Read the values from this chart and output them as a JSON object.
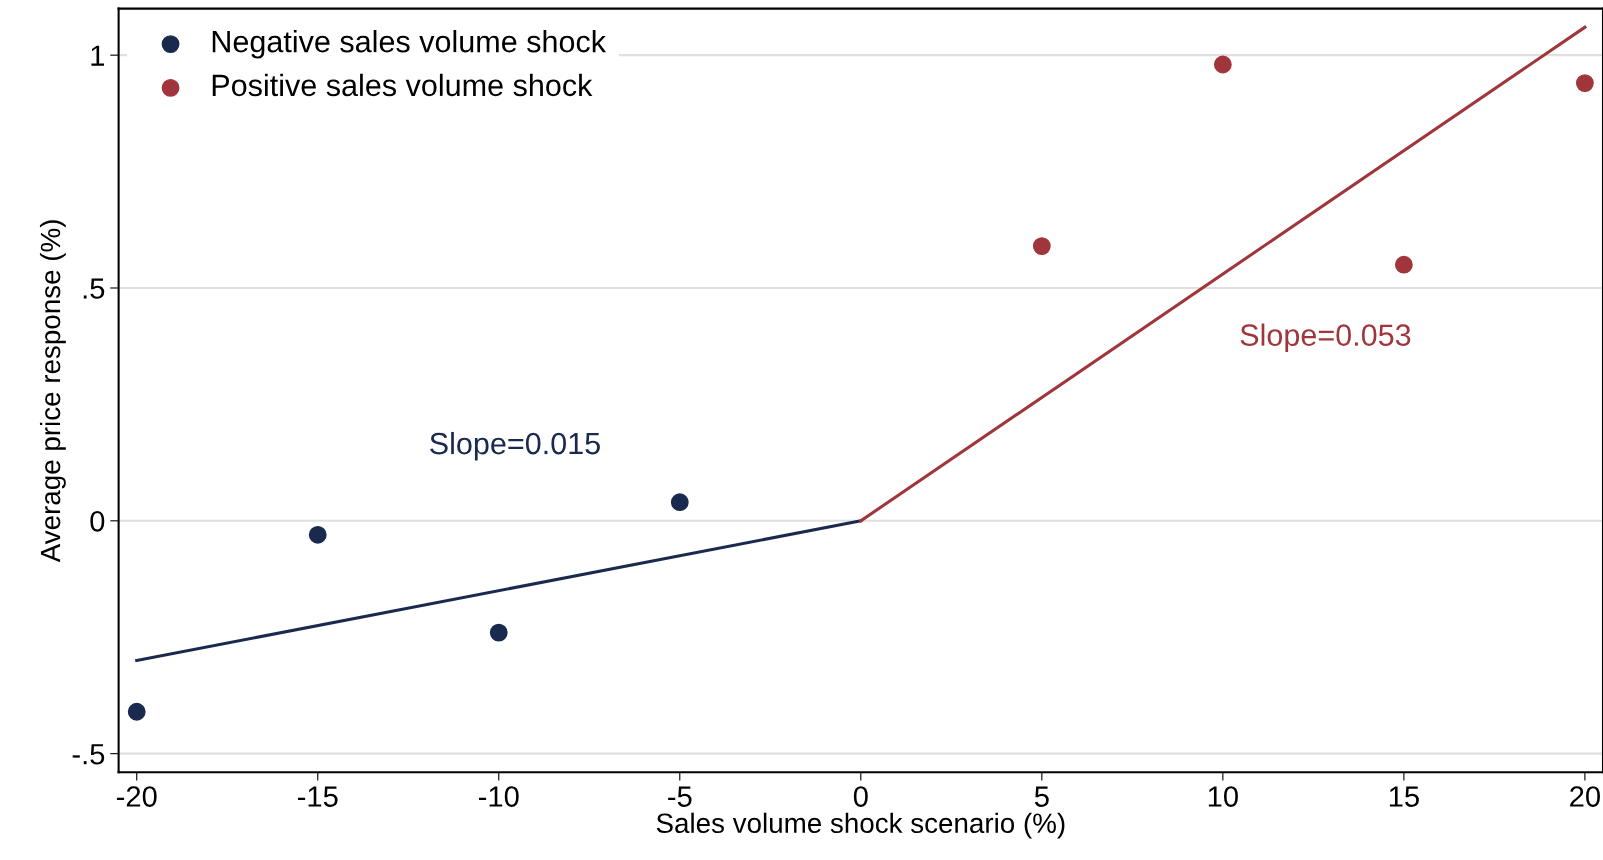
{
  "chart_data": {
    "type": "scatter",
    "xlabel": "Sales volume shock scenario (%)",
    "ylabel": "Average price response (%)",
    "series": [
      {
        "name": "Negative sales volume shock",
        "color": "#1a2a4f",
        "x": [
          -20,
          -15,
          -10,
          -5
        ],
        "values": [
          -0.41,
          -0.03,
          -0.24,
          0.04
        ],
        "marker": "circle"
      },
      {
        "name": "Positive sales volume shock",
        "color": "#a0363c",
        "x": [
          5,
          10,
          15,
          20
        ],
        "values": [
          0.59,
          0.98,
          0.55,
          0.94
        ],
        "marker": "circle"
      },
      {
        "type": "line",
        "color": "#1a2a4f",
        "x": [
          -20,
          0
        ],
        "values": [
          -0.3,
          0
        ]
      },
      {
        "type": "line",
        "color": "#a0363c",
        "x": [
          0,
          20
        ],
        "values": [
          0,
          1.06
        ]
      }
    ],
    "annotations": [
      "Slope=0.015",
      "Slope=0.053"
    ],
    "xlim": [
      -20.5,
      20.5
    ],
    "ylim": [
      -0.54,
      1.1
    ],
    "xticks": [
      -20,
      -15,
      -10,
      -5,
      0,
      5,
      10,
      15,
      20
    ],
    "yticks": [
      {
        "value": -0.5,
        "label": "-.5"
      },
      0,
      {
        "value": 0.5,
        "label": ".5"
      },
      1
    ],
    "grid": "y",
    "legend": "top left"
  }
}
